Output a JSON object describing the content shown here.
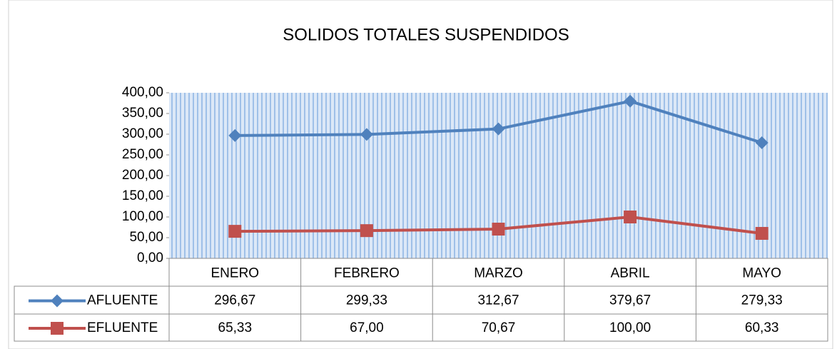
{
  "chart_data": {
    "type": "line",
    "title": "SOLIDOS TOTALES SUSPENDIDOS",
    "categories": [
      "ENERO",
      "FEBRERO",
      "MARZO",
      "ABRIL",
      "MAYO"
    ],
    "series": [
      {
        "name": "AFLUENTE",
        "color": "#4f81bd",
        "marker": "diamond",
        "values": [
          296.67,
          299.33,
          312.67,
          379.67,
          279.33
        ],
        "value_labels": [
          "296,67",
          "299,33",
          "312,67",
          "379,67",
          "279,33"
        ]
      },
      {
        "name": "EFLUENTE",
        "color": "#c0504d",
        "marker": "square",
        "values": [
          65.33,
          67.0,
          70.67,
          100.0,
          60.33
        ],
        "value_labels": [
          "65,33",
          "67,00",
          "70,67",
          "100,00",
          "60,33"
        ]
      }
    ],
    "ylim": [
      0,
      400
    ],
    "yticks": [
      {
        "value": 0,
        "label": "0,00"
      },
      {
        "value": 50,
        "label": "50,00"
      },
      {
        "value": 100,
        "label": "100,00"
      },
      {
        "value": 150,
        "label": "150,00"
      },
      {
        "value": 200,
        "label": "200,00"
      },
      {
        "value": 250,
        "label": "250,00"
      },
      {
        "value": 300,
        "label": "300,00"
      },
      {
        "value": 350,
        "label": "350,00"
      },
      {
        "value": 400,
        "label": "400,00"
      }
    ],
    "grid": false,
    "data_table": true
  }
}
